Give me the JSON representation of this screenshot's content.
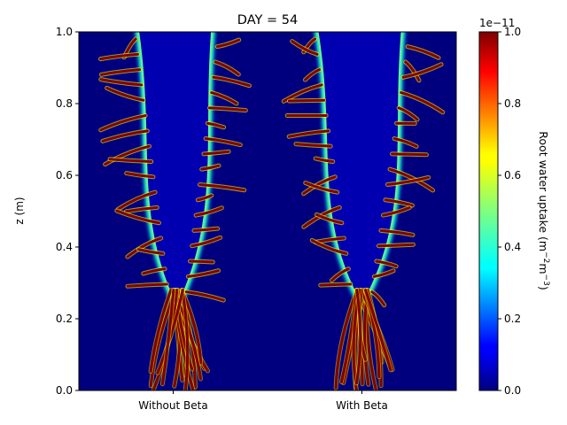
{
  "chart_data": {
    "type": "heatmap",
    "title": "DAY = 54",
    "xlabel": "",
    "ylabel": "z (m)",
    "categories": [
      "Without Beta",
      "With Beta"
    ],
    "ylim": [
      0,
      1
    ],
    "yticks": [
      "0.0",
      "0.2",
      "0.4",
      "0.6",
      "0.8",
      "1.0"
    ],
    "colormap": "jet",
    "colorbar": {
      "label_prefix": "Root water uptake (m",
      "label_sup1": "−2",
      "label_mid": "m",
      "label_sup2": "−3",
      "label_suffix": ")",
      "offset_text": "1e−11",
      "range": [
        0,
        1
      ],
      "ticks": [
        "0.0",
        "0.2",
        "0.4",
        "0.6",
        "0.8",
        "1.0"
      ]
    },
    "panels": [
      {
        "name": "Without Beta",
        "depletion_zone_center_x": 0.52,
        "depletion_zone_half_width_at_top": 0.2,
        "depletion_zone_bottom_z": 0.27,
        "root_tip_depth_z": 0.0,
        "max_lateral_root_extent": 0.49
      },
      {
        "name": "With Beta",
        "depletion_zone_center_x": 0.5,
        "depletion_zone_half_width_at_top": 0.23,
        "depletion_zone_bottom_z": 0.27,
        "root_tip_depth_z": 0.0,
        "max_lateral_root_extent": 0.48
      }
    ]
  },
  "colors": {
    "background": "#00007f",
    "high": "#7f0000",
    "mid": "#ffff00",
    "low": "#00ffff"
  }
}
